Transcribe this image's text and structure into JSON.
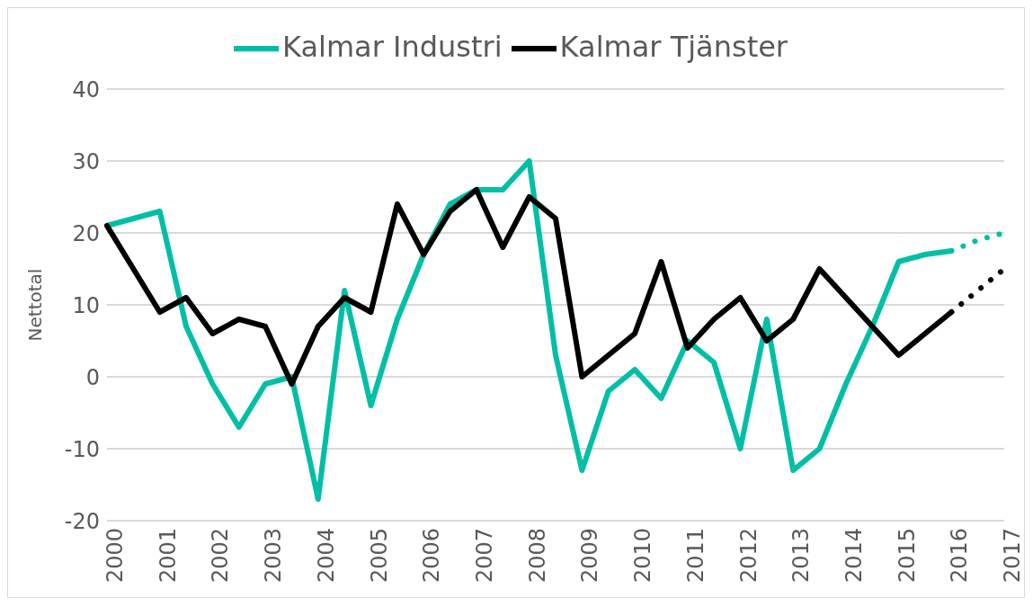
{
  "chart_data": {
    "type": "line",
    "ylabel": "Nettotal",
    "categories": [
      "2000",
      null,
      "2001",
      null,
      "2002",
      null,
      "2003",
      null,
      "2004",
      null,
      "2005",
      null,
      "2006",
      null,
      "2007",
      null,
      "2008",
      null,
      "2009",
      null,
      "2010",
      null,
      "2011",
      null,
      "2012",
      null,
      "2013",
      null,
      "2014",
      null,
      "2015",
      null,
      "2016",
      null,
      "2017"
    ],
    "series": [
      {
        "name": "Kalmar Industri",
        "color": "#00bfa5",
        "values": [
          21,
          22,
          23,
          7,
          -1,
          -7,
          -1,
          0,
          -17,
          12,
          -4,
          8,
          17,
          24,
          26,
          26,
          30,
          3,
          -13,
          -2,
          1,
          -3,
          5,
          2,
          -10,
          8,
          -13,
          -10,
          -1,
          7,
          16,
          17,
          17.5,
          null,
          null
        ]
      },
      {
        "name": "Kalmar Tjänster",
        "color": "#000000",
        "values": [
          21,
          15,
          9,
          11,
          6,
          8,
          7,
          -1,
          7,
          11,
          9,
          24,
          17,
          23,
          26,
          18,
          25,
          22,
          0,
          3,
          6,
          16,
          4,
          8,
          11,
          5,
          8,
          15,
          11,
          7,
          3,
          6,
          9,
          null,
          null
        ]
      },
      {
        "color": "#00bfa5",
        "line_style": "dotted",
        "values": [
          null,
          null,
          null,
          null,
          null,
          null,
          null,
          null,
          null,
          null,
          null,
          null,
          null,
          null,
          null,
          null,
          null,
          null,
          null,
          null,
          null,
          null,
          null,
          null,
          null,
          null,
          null,
          null,
          null,
          null,
          null,
          null,
          17.5,
          19,
          20
        ]
      },
      {
        "color": "#000000",
        "line_style": "dotted",
        "values": [
          null,
          null,
          null,
          null,
          null,
          null,
          null,
          null,
          null,
          null,
          null,
          null,
          null,
          null,
          null,
          null,
          null,
          null,
          null,
          null,
          null,
          null,
          null,
          null,
          null,
          null,
          null,
          null,
          null,
          null,
          null,
          null,
          9,
          12,
          15
        ]
      }
    ],
    "ylim": [
      -20,
      40
    ],
    "yticks": [
      -20,
      -10,
      0,
      10,
      20,
      30,
      40
    ],
    "grid": "y",
    "legend": "top",
    "marker": "none",
    "line_style": "solid"
  }
}
